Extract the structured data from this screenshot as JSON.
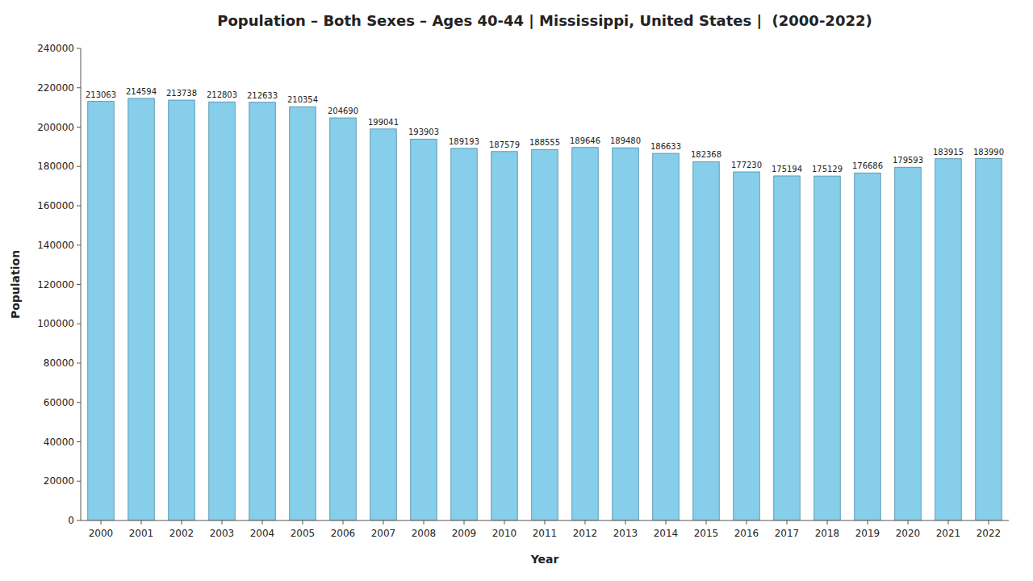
{
  "chart_data": {
    "type": "bar",
    "title": "Population – Both Sexes – Ages 40-44 | Mississippi, United States |  (2000-2022)",
    "x_label": "Year",
    "y_label": "Population",
    "categories": [
      "2000",
      "2001",
      "2002",
      "2003",
      "2004",
      "2005",
      "2006",
      "2007",
      "2008",
      "2009",
      "2010",
      "2011",
      "2012",
      "2013",
      "2014",
      "2015",
      "2016",
      "2017",
      "2018",
      "2019",
      "2020",
      "2021",
      "2022"
    ],
    "values": [
      213063,
      214594,
      213738,
      212803,
      212633,
      210354,
      204690,
      199041,
      193903,
      189193,
      187579,
      188555,
      189646,
      189480,
      186633,
      182368,
      177230,
      175194,
      175129,
      176686,
      179593,
      183915,
      183990
    ],
    "color": "#87CEEB",
    "ylim": [
      0,
      240000
    ],
    "yticks": [
      0,
      20000,
      40000,
      60000,
      80000,
      100000,
      120000,
      140000,
      160000,
      180000,
      200000,
      220000,
      240000
    ],
    "grid": false,
    "data_labels": true
  }
}
